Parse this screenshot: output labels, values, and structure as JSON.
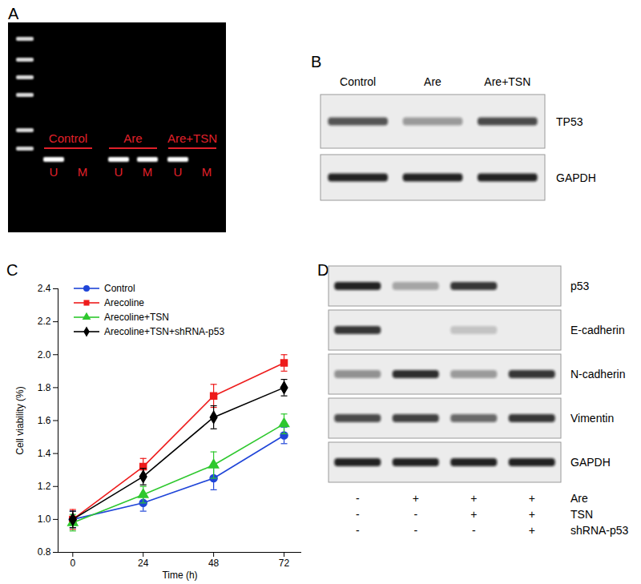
{
  "panel_labels": [
    "A",
    "B",
    "C",
    "D"
  ],
  "gel": {
    "groups": [
      {
        "name": "Control",
        "lanes": [
          {
            "label": "U",
            "band": 1
          },
          {
            "label": "M",
            "band": 0
          }
        ]
      },
      {
        "name": "Are",
        "lanes": [
          {
            "label": "U",
            "band": 1
          },
          {
            "label": "M",
            "band": 1
          }
        ]
      },
      {
        "name": "Are+TSN",
        "lanes": [
          {
            "label": "U",
            "band": 1
          },
          {
            "label": "M",
            "band": 0
          }
        ]
      }
    ]
  },
  "blot_b": {
    "lanes": [
      "Control",
      "Are",
      "Are+TSN"
    ],
    "rows": [
      {
        "name": "TP53",
        "intensity": [
          0.75,
          0.4,
          0.8
        ]
      },
      {
        "name": "GAPDH",
        "intensity": [
          1,
          1,
          1
        ]
      }
    ]
  },
  "chart_data": {
    "type": "line",
    "xlabel": "Time (h)",
    "ylabel": "Cell viability (%)",
    "x": [
      0,
      24,
      48,
      72
    ],
    "xlim": [
      -5,
      78
    ],
    "xticks": [
      0,
      24,
      48,
      72
    ],
    "ylim": [
      0.8,
      2.4
    ],
    "yticks": [
      0.8,
      {
        "value": 1,
        "label": "1.0"
      },
      1.2,
      1.4,
      1.6,
      1.8,
      {
        "value": 2,
        "label": "2.0"
      },
      2.2,
      2.4
    ],
    "legend": "top-left",
    "series": [
      {
        "name": "Control",
        "color": "#1f45d8",
        "marker": "circle",
        "values": [
          1.0,
          1.1,
          1.25,
          1.51
        ],
        "errors": [
          0.05,
          0.05,
          0.07,
          0.05
        ]
      },
      {
        "name": "Arecoline",
        "color": "#ee1c1c",
        "marker": "square",
        "values": [
          1.0,
          1.32,
          1.75,
          1.95
        ],
        "errors": [
          0.06,
          0.05,
          0.07,
          0.05
        ]
      },
      {
        "name": "Arecoline+TSN",
        "color": "#2ec82e",
        "marker": "triangle",
        "values": [
          0.98,
          1.15,
          1.33,
          1.58
        ],
        "errors": [
          0.05,
          0.05,
          0.08,
          0.06
        ]
      },
      {
        "name": "Arecoline+TSN+shRNA-p53",
        "color": "#000000",
        "marker": "diamond",
        "values": [
          1.0,
          1.26,
          1.62,
          1.8
        ],
        "errors": [
          0.05,
          0.05,
          0.07,
          0.05
        ]
      }
    ]
  },
  "blot_d": {
    "rows": [
      {
        "name": "p53",
        "intensity": [
          1,
          0.35,
          0.9,
          0
        ]
      },
      {
        "name": "E-cadherin",
        "intensity": [
          0.9,
          0,
          0.2,
          0
        ]
      },
      {
        "name": "N-cadherin",
        "intensity": [
          0.45,
          0.95,
          0.4,
          0.9
        ]
      },
      {
        "name": "Vimentin",
        "intensity": [
          0.8,
          0.85,
          0.65,
          0.9
        ]
      },
      {
        "name": "GAPDH",
        "intensity": [
          1,
          1,
          1,
          1
        ]
      }
    ],
    "treatments": [
      {
        "name": "Are",
        "signs": [
          "-",
          "+",
          "+",
          "+"
        ]
      },
      {
        "name": "TSN",
        "signs": [
          "-",
          "-",
          "+",
          "+"
        ]
      },
      {
        "name": "shRNA-p53",
        "signs": [
          "-",
          "-",
          "-",
          "+"
        ]
      }
    ]
  }
}
